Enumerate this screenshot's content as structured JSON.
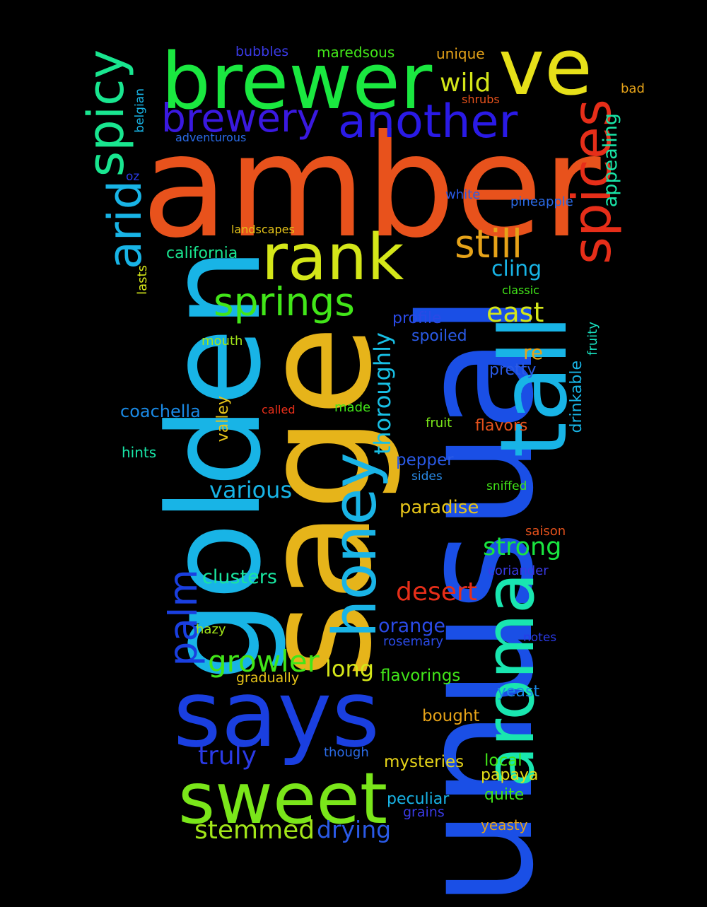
{
  "words": [
    {
      "text": "amber",
      "color": "#e8521c"
    },
    {
      "text": "unusual",
      "color": "#1a4fe6"
    },
    {
      "text": "sage",
      "color": "#e6b41a"
    },
    {
      "text": "golden",
      "color": "#18b4e6"
    },
    {
      "text": "says",
      "color": "#1a3fe0"
    },
    {
      "text": "brewer",
      "color": "#1ae840"
    },
    {
      "text": "ve",
      "color": "#e6e019"
    },
    {
      "text": "sweet",
      "color": "#7ae61a"
    },
    {
      "text": "tall",
      "color": "#18b4e6"
    },
    {
      "text": "aroma",
      "color": "#19e6b0"
    },
    {
      "text": "rank",
      "color": "#d4e619"
    },
    {
      "text": "honey",
      "color": "#1ab4e6"
    },
    {
      "text": "spices",
      "color": "#e62e19"
    },
    {
      "text": "spicy",
      "color": "#19e690"
    },
    {
      "text": "arid",
      "color": "#18b4e6"
    },
    {
      "text": "another",
      "color": "#2a1ae6"
    },
    {
      "text": "brewery",
      "color": "#3a19e0"
    },
    {
      "text": "springs",
      "color": "#42e619"
    },
    {
      "text": "palm",
      "color": "#1a3fe0"
    },
    {
      "text": "still",
      "color": "#e6a319"
    },
    {
      "text": "growler",
      "color": "#42e619"
    },
    {
      "text": "thoroughly",
      "color": "#18c0e6"
    },
    {
      "text": "stemmed",
      "color": "#a2e619"
    },
    {
      "text": "wild",
      "color": "#d4e619"
    },
    {
      "text": "appealing",
      "color": "#19e6a8"
    },
    {
      "text": "east",
      "color": "#d4e619"
    },
    {
      "text": "strong",
      "color": "#19e640"
    },
    {
      "text": "various",
      "color": "#18b4e6"
    },
    {
      "text": "drying",
      "color": "#2a5ae6"
    },
    {
      "text": "truly",
      "color": "#2a3ae6"
    },
    {
      "text": "desert",
      "color": "#e62e19"
    },
    {
      "text": "cling",
      "color": "#18b4e6"
    },
    {
      "text": "long",
      "color": "#d4e619"
    },
    {
      "text": "clusters",
      "color": "#19e6a0"
    },
    {
      "text": "paradise",
      "color": "#e6c419"
    },
    {
      "text": "orange",
      "color": "#2a4ae6"
    },
    {
      "text": "valley",
      "color": "#e6c419"
    },
    {
      "text": "drinkable",
      "color": "#18b4e6"
    },
    {
      "text": "re",
      "color": "#e6a319"
    },
    {
      "text": "flavorings",
      "color": "#42e619"
    },
    {
      "text": "mysteries",
      "color": "#e6d419"
    },
    {
      "text": "local",
      "color": "#42e619"
    },
    {
      "text": "coachella",
      "color": "#1a8ae6"
    },
    {
      "text": "california",
      "color": "#19e690"
    },
    {
      "text": "fruity",
      "color": "#19e6c4"
    },
    {
      "text": "pepper",
      "color": "#2a5ae6"
    },
    {
      "text": "profile",
      "color": "#2a4ae6"
    },
    {
      "text": "spoiled",
      "color": "#2a5ae6"
    },
    {
      "text": "lasts",
      "color": "#d4e619"
    },
    {
      "text": "bought",
      "color": "#e6a319"
    },
    {
      "text": "yeast",
      "color": "#1a8ae6"
    },
    {
      "text": "papaya",
      "color": "#e6e019"
    },
    {
      "text": "peculiar",
      "color": "#18b4e6"
    },
    {
      "text": "pretty",
      "color": "#2a5ae6"
    },
    {
      "text": "flavors",
      "color": "#e6521c"
    },
    {
      "text": "quite",
      "color": "#42e619"
    },
    {
      "text": "yeasty",
      "color": "#e6a319"
    },
    {
      "text": "unique",
      "color": "#e6a319"
    },
    {
      "text": "maredsous",
      "color": "#42e619"
    },
    {
      "text": "bubbles",
      "color": "#3a3ae6"
    },
    {
      "text": "belgian",
      "color": "#18b4e6"
    },
    {
      "text": "oz",
      "color": "#2a3ae6"
    },
    {
      "text": "hints",
      "color": "#19e6a8"
    },
    {
      "text": "gradually",
      "color": "#e6c419"
    },
    {
      "text": "white",
      "color": "#2a5ae6"
    },
    {
      "text": "pineapple",
      "color": "#2a6ae6"
    },
    {
      "text": "bad",
      "color": "#e6a319"
    },
    {
      "text": "coriander",
      "color": "#3a3ae6"
    },
    {
      "text": "made",
      "color": "#42e619"
    },
    {
      "text": "fruit",
      "color": "#7ae619"
    },
    {
      "text": "mouth",
      "color": "#a2e619"
    },
    {
      "text": "saison",
      "color": "#e6521c"
    },
    {
      "text": "grains",
      "color": "#3a3ae6"
    },
    {
      "text": "rosemary",
      "color": "#2a4ae6"
    },
    {
      "text": "hazy",
      "color": "#a2e619"
    },
    {
      "text": "sniffed",
      "color": "#42e619"
    },
    {
      "text": "sides",
      "color": "#2a8ae6"
    },
    {
      "text": "notes",
      "color": "#2a3ae6"
    },
    {
      "text": "though",
      "color": "#2a6ae6"
    },
    {
      "text": "called",
      "color": "#e62e19"
    },
    {
      "text": "classic",
      "color": "#42e619"
    },
    {
      "text": "shrubs",
      "color": "#e6521c"
    },
    {
      "text": "adventurous",
      "color": "#2a6ae6"
    },
    {
      "text": "landscapes",
      "color": "#e6c419"
    }
  ]
}
